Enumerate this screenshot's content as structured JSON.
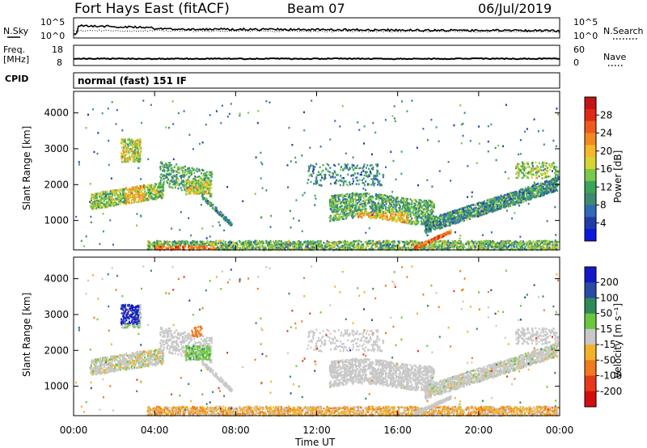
{
  "header": {
    "title": "Fort Hays East (fitACF)",
    "beam": "Beam 07",
    "date": "06/Jul/2019"
  },
  "nsky_panel": {
    "left_label": "N.Sky",
    "right_label": "N.Search",
    "ticks_left": [
      "10^5",
      "10^0"
    ],
    "ticks_right": [
      "10^5",
      "10^0"
    ]
  },
  "freq_panel": {
    "left_label_top": "Freq.",
    "left_label_bottom": "[MHz]",
    "ticks_left": [
      "18",
      "8"
    ],
    "ticks_right": [
      "60",
      "0"
    ],
    "right_label": "Nave"
  },
  "cpid_panel": {
    "label": "CPID",
    "mode": "normal (fast) 151 IF"
  },
  "chart_data": [
    {
      "type": "heatmap",
      "name": "power",
      "ylabel": "Slant Range [km]",
      "ylim": [
        180,
        4600
      ],
      "yticks": [
        "1000",
        "2000",
        "3000",
        "4000"
      ],
      "colorbar_label": "Power [dB]",
      "colorbar_ticks": [
        "4",
        "8",
        "12",
        "16",
        "20",
        "24",
        "28"
      ],
      "colors": [
        "#0a1adc",
        "#233ba6",
        "#2f6bb7",
        "#3d8a6e",
        "#3aa55a",
        "#7cc84a",
        "#d6d432",
        "#f5b82b",
        "#f28a22",
        "#ef5a1c",
        "#e02a17",
        "#c41414"
      ]
    },
    {
      "type": "heatmap",
      "name": "velocity",
      "ylabel": "Slant Range [km]",
      "ylim": [
        180,
        4600
      ],
      "yticks": [
        "1000",
        "2000",
        "3000",
        "4000"
      ],
      "colorbar_label": "Velocity [m s⁻¹]",
      "colorbar_ticks": [
        "200",
        "100",
        "50",
        "15",
        "-15",
        "-50",
        "-100",
        "-200"
      ],
      "colors": [
        "#1418c8",
        "#2a4aa8",
        "#2f8a5a",
        "#6ac83e",
        "#c8c8c8",
        "#f2b22a",
        "#f07a1e",
        "#e8381a",
        "#d40e0e"
      ]
    }
  ],
  "x_axis": {
    "ticks": [
      "00:00",
      "04:00",
      "08:00",
      "12:00",
      "16:00",
      "20:00",
      "00:00"
    ],
    "label": "Time UT"
  }
}
